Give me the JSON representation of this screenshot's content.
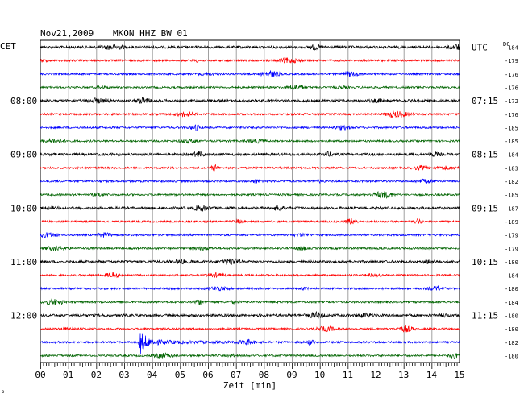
{
  "header": {
    "date": "Nov21,2009",
    "station": "MKON HHZ BW 01",
    "left_label": "CET",
    "right_label": "UTC",
    "dc_label": "DC"
  },
  "chart_data": {
    "type": "line",
    "title": "Nov21,2009   MKON HHZ BW 01",
    "xlabel": "Zeit [min]",
    "xlim": [
      0,
      15
    ],
    "x_ticks": [
      "00",
      "01",
      "02",
      "03",
      "04",
      "05",
      "06",
      "07",
      "08",
      "09",
      "10",
      "11",
      "12",
      "13",
      "14",
      "15"
    ],
    "grid": true,
    "trace_count": 24,
    "trace_colors": [
      "#000000",
      "#ff0000",
      "#0000ff",
      "#006400"
    ],
    "left_time_labels": [
      {
        "trace_index": 4,
        "label": "08:00"
      },
      {
        "trace_index": 8,
        "label": "09:00"
      },
      {
        "trace_index": 12,
        "label": "10:00"
      },
      {
        "trace_index": 16,
        "label": "11:00"
      },
      {
        "trace_index": 20,
        "label": "12:00"
      }
    ],
    "right_time_labels": [
      {
        "trace_index": 0,
        "label": "UTC"
      },
      {
        "trace_index": 4,
        "label": "07:15"
      },
      {
        "trace_index": 8,
        "label": "08:15"
      },
      {
        "trace_index": 12,
        "label": "09:15"
      },
      {
        "trace_index": 16,
        "label": "10:15"
      },
      {
        "trace_index": 20,
        "label": "11:15"
      }
    ],
    "dc_offsets": [
      "-184",
      "-179",
      "-176",
      "-176",
      "-172",
      "-176",
      "-185",
      "-185",
      "-184",
      "-183",
      "-182",
      "-185",
      "-187",
      "-189",
      "-179",
      "-179",
      "-180",
      "-184",
      "-180",
      "-184",
      "-180",
      "-180",
      "-182",
      "-180"
    ],
    "events": [
      {
        "trace_index": 22,
        "minute": 3.55,
        "amplitude": "large",
        "description": "seismic event"
      }
    ]
  },
  "footer": {
    "corner_mark": "ↄ"
  }
}
